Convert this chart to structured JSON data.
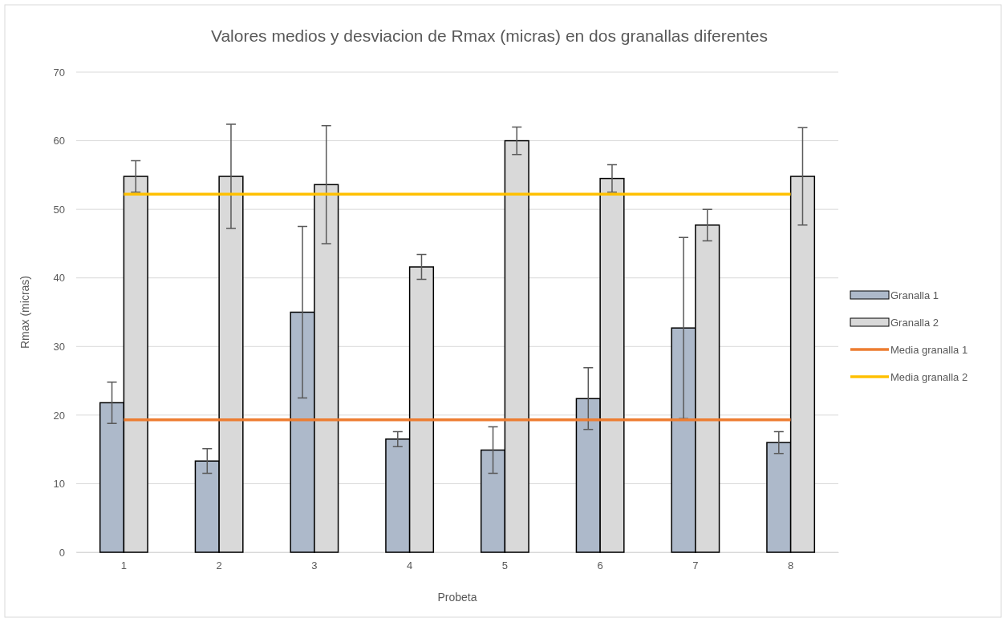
{
  "chart_data": {
    "type": "bar",
    "title": "Valores medios y desviacion de Rmax (micras) en dos granallas diferentes",
    "xlabel": "Probeta",
    "ylabel": "Rmax (micras)",
    "categories": [
      "1",
      "2",
      "3",
      "4",
      "5",
      "6",
      "7",
      "8"
    ],
    "series": [
      {
        "name": "Granalla 1",
        "color": "#adb9ca",
        "values": [
          21.8,
          13.3,
          35,
          16.5,
          14.9,
          22.4,
          32.7,
          16
        ],
        "errors": [
          3,
          1.8,
          12.5,
          1.1,
          3.4,
          4.5,
          13.2,
          1.6
        ]
      },
      {
        "name": "Granalla 2",
        "color": "#d9d9d9",
        "values": [
          54.8,
          54.8,
          53.6,
          41.6,
          60,
          54.5,
          47.7,
          54.8
        ],
        "errors": [
          2.3,
          7.6,
          8.6,
          1.8,
          2,
          2,
          2.3,
          7.1
        ]
      },
      {
        "name": "Media granalla 1",
        "type": "line",
        "color": "#ed7d31",
        "values": [
          19.3,
          19.3,
          19.3,
          19.3,
          19.3,
          19.3,
          19.3,
          19.3
        ]
      },
      {
        "name": "Media granalla 2",
        "type": "line",
        "color": "#ffc000",
        "values": [
          52.2,
          52.2,
          52.2,
          52.2,
          52.2,
          52.2,
          52.2,
          52.2
        ]
      }
    ],
    "ylim": [
      0,
      70
    ],
    "yticks": [
      0,
      10,
      20,
      30,
      40,
      50,
      60,
      70
    ],
    "grid": "y",
    "legend": "right"
  }
}
